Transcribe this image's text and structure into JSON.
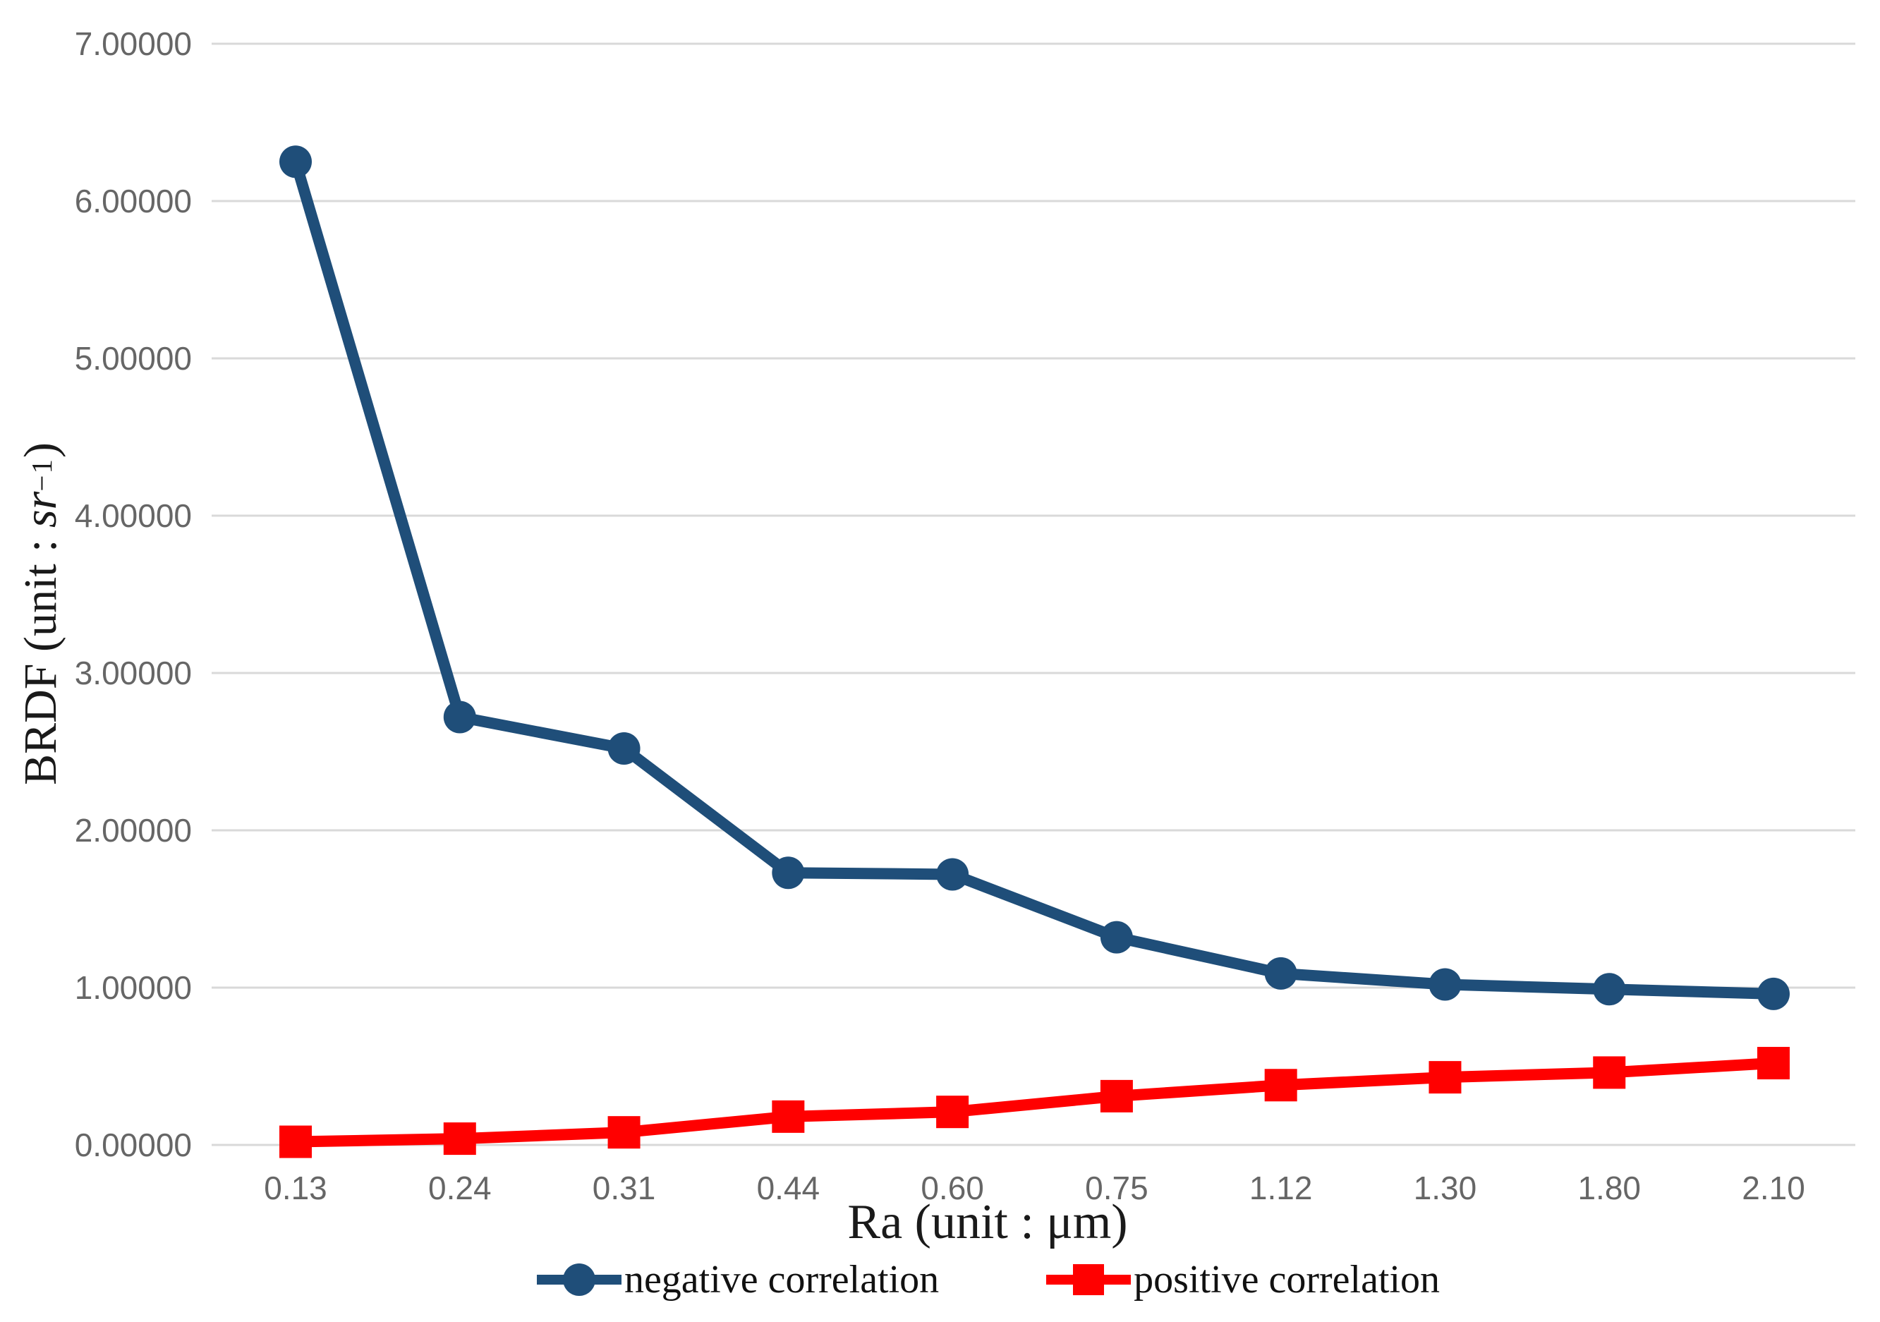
{
  "chart_data": {
    "type": "line",
    "title": "",
    "xlabel": "Ra (unit : μm)",
    "ylabel": {
      "prefix": "BRDF (unit : ",
      "unit_italic": "sr",
      "exponent": "−1",
      "suffix": ")"
    },
    "categories": [
      "0.13",
      "0.24",
      "0.31",
      "0.44",
      "0.60",
      "0.75",
      "1.12",
      "1.30",
      "1.80",
      "2.10"
    ],
    "y_tick_labels": [
      "0.00000",
      "1.00000",
      "2.00000",
      "3.00000",
      "4.00000",
      "5.00000",
      "6.00000",
      "7.00000"
    ],
    "ylim": [
      0,
      7
    ],
    "grid": true,
    "legend_position": "bottom",
    "series": [
      {
        "name": "negative correlation",
        "color": "#1F4E79",
        "marker": "circle",
        "values": [
          6.25,
          2.72,
          2.52,
          1.73,
          1.72,
          1.32,
          1.09,
          1.02,
          0.99,
          0.96
        ]
      },
      {
        "name": "positive correlation",
        "color": "#FF0000",
        "marker": "square",
        "values": [
          0.02,
          0.04,
          0.08,
          0.18,
          0.21,
          0.31,
          0.38,
          0.43,
          0.46,
          0.52
        ]
      }
    ],
    "colors": {
      "gridline": "#D9D9D9",
      "tick_text": "#666666",
      "title_text": "#1A1A1A"
    }
  }
}
